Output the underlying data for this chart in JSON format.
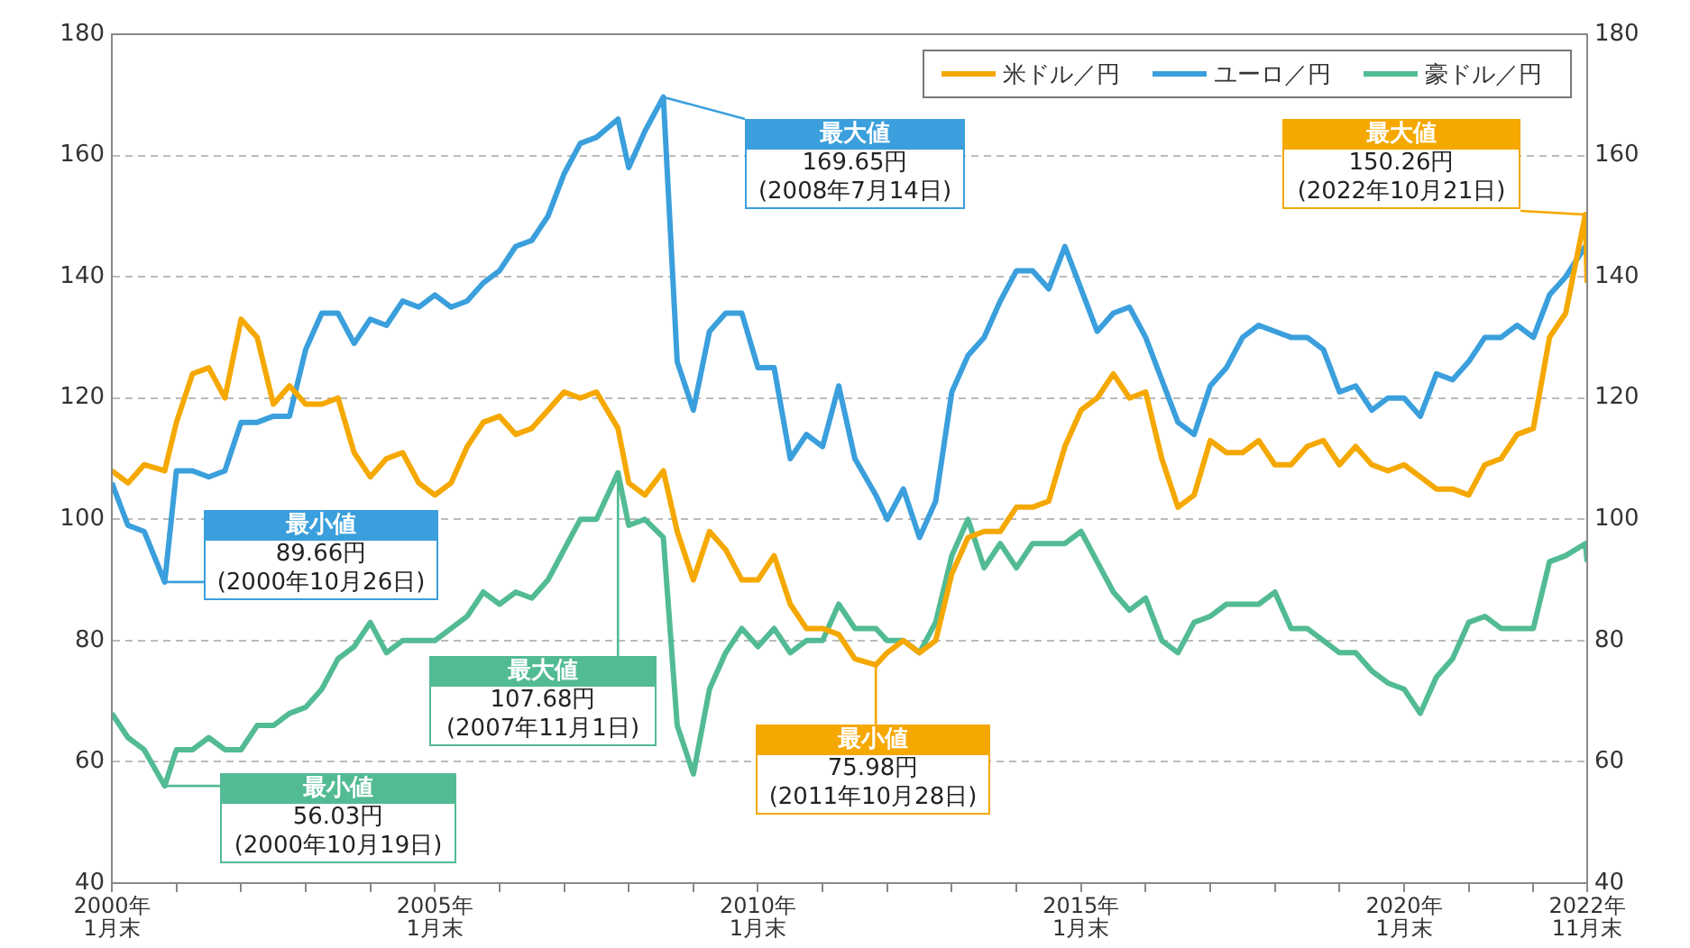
{
  "chart_data": {
    "type": "line",
    "x": [
      "2000-01",
      "2000-04",
      "2000-07",
      "2000-10-26",
      "2001-01",
      "2001-04",
      "2001-07",
      "2001-10",
      "2002-01",
      "2002-04",
      "2002-07",
      "2002-10",
      "2003-01",
      "2003-04",
      "2003-07",
      "2003-10",
      "2004-01",
      "2004-04",
      "2004-07",
      "2004-10",
      "2005-01",
      "2005-04",
      "2005-07",
      "2005-10",
      "2006-01",
      "2006-04",
      "2006-07",
      "2006-10",
      "2007-01",
      "2007-04",
      "2007-07",
      "2007-11-01",
      "2008-01",
      "2008-04",
      "2008-07-14",
      "2008-10",
      "2009-01",
      "2009-04",
      "2009-07",
      "2009-10",
      "2010-01",
      "2010-04",
      "2010-07",
      "2010-10",
      "2011-01",
      "2011-04",
      "2011-07",
      "2011-10-28",
      "2012-01",
      "2012-04",
      "2012-07",
      "2012-10",
      "2013-01",
      "2013-04",
      "2013-07",
      "2013-10",
      "2014-01",
      "2014-04",
      "2014-07",
      "2014-10",
      "2015-01",
      "2015-04",
      "2015-07",
      "2015-10",
      "2016-01",
      "2016-04",
      "2016-07",
      "2016-10",
      "2017-01",
      "2017-04",
      "2017-07",
      "2017-10",
      "2018-01",
      "2018-04",
      "2018-07",
      "2018-10",
      "2019-01",
      "2019-04",
      "2019-07",
      "2019-10",
      "2020-01",
      "2020-04",
      "2020-07",
      "2020-10",
      "2021-01",
      "2021-04",
      "2021-07",
      "2021-10",
      "2022-01",
      "2022-04",
      "2022-07",
      "2022-10-21",
      "2022-11"
    ],
    "series": [
      {
        "name": "米ドル／円",
        "color": "#f5a800",
        "values": [
          108,
          106,
          109,
          108,
          116,
          124,
          125,
          120,
          133,
          130,
          119,
          122,
          119,
          119,
          120,
          111,
          107,
          110,
          111,
          106,
          104,
          106,
          112,
          116,
          117,
          114,
          115,
          118,
          121,
          120,
          121,
          115,
          106,
          104,
          108,
          98,
          90,
          98,
          95,
          90,
          90,
          94,
          86,
          82,
          82,
          81,
          77,
          75.98,
          78,
          80,
          78,
          80,
          91,
          97,
          98,
          98,
          102,
          102,
          103,
          112,
          118,
          120,
          124,
          120,
          121,
          110,
          102,
          104,
          113,
          111,
          111,
          113,
          109,
          109,
          112,
          113,
          109,
          112,
          109,
          108,
          109,
          107,
          105,
          105,
          104,
          109,
          110,
          114,
          115,
          130,
          134,
          150.26,
          139
        ]
      },
      {
        "name": "ユーロ／円",
        "color": "#3a9fdc",
        "values": [
          106,
          99,
          98,
          89.66,
          108,
          108,
          107,
          108,
          116,
          116,
          117,
          117,
          128,
          134,
          134,
          129,
          133,
          132,
          136,
          135,
          137,
          135,
          136,
          139,
          141,
          145,
          146,
          150,
          157,
          162,
          163,
          166,
          158,
          164,
          169.65,
          126,
          118,
          131,
          134,
          134,
          125,
          125,
          110,
          114,
          112,
          122,
          110,
          104,
          100,
          105,
          97,
          103,
          121,
          127,
          130,
          136,
          141,
          141,
          138,
          145,
          138,
          131,
          134,
          135,
          130,
          123,
          116,
          114,
          122,
          125,
          130,
          132,
          131,
          130,
          130,
          128,
          121,
          122,
          118,
          120,
          120,
          117,
          124,
          123,
          126,
          130,
          130,
          132,
          130,
          137,
          140,
          145,
          143
        ]
      },
      {
        "name": "豪ドル／円",
        "color": "#52bb94",
        "values": [
          68,
          64,
          62,
          56.03,
          62,
          62,
          64,
          62,
          62,
          66,
          66,
          68,
          69,
          72,
          77,
          79,
          83,
          78,
          80,
          80,
          80,
          82,
          84,
          88,
          86,
          88,
          87,
          90,
          95,
          100,
          100,
          107.68,
          99,
          100,
          97,
          66,
          58,
          72,
          78,
          82,
          79,
          82,
          78,
          80,
          80,
          86,
          82,
          82,
          80,
          80,
          78,
          83,
          94,
          100,
          92,
          96,
          92,
          96,
          96,
          96,
          98,
          93,
          88,
          85,
          87,
          80,
          78,
          83,
          84,
          86,
          86,
          86,
          88,
          82,
          82,
          80,
          78,
          78,
          75,
          73,
          72,
          68,
          74,
          77,
          83,
          84,
          82,
          82,
          82,
          93,
          94,
          96,
          93
        ]
      }
    ],
    "xlim": [
      "2000-01",
      "2022-11"
    ],
    "xticks": [
      {
        "value": "2000-01",
        "label": "2000年\n1月末"
      },
      {
        "value": "2001-01",
        "label": null
      },
      {
        "value": "2002-01",
        "label": null
      },
      {
        "value": "2003-01",
        "label": null
      },
      {
        "value": "2004-01",
        "label": null
      },
      {
        "value": "2005-01",
        "label": "2005年\n1月末"
      },
      {
        "value": "2006-01",
        "label": null
      },
      {
        "value": "2007-01",
        "label": null
      },
      {
        "value": "2008-01",
        "label": null
      },
      {
        "value": "2009-01",
        "label": null
      },
      {
        "value": "2010-01",
        "label": "2010年\n1月末"
      },
      {
        "value": "2011-01",
        "label": null
      },
      {
        "value": "2012-01",
        "label": null
      },
      {
        "value": "2013-01",
        "label": null
      },
      {
        "value": "2014-01",
        "label": null
      },
      {
        "value": "2015-01",
        "label": "2015年\n1月末"
      },
      {
        "value": "2016-01",
        "label": null
      },
      {
        "value": "2017-01",
        "label": null
      },
      {
        "value": "2018-01",
        "label": null
      },
      {
        "value": "2019-01",
        "label": null
      },
      {
        "value": "2020-01",
        "label": "2020年\n1月末"
      },
      {
        "value": "2021-01",
        "label": null
      },
      {
        "value": "2022-01",
        "label": null
      },
      {
        "value": "2022-11",
        "label": "2022年\n11月末"
      }
    ],
    "ylim": [
      40,
      180
    ],
    "yticks": [
      40,
      60,
      80,
      100,
      120,
      140,
      160,
      180
    ],
    "y2lim": [
      40,
      180
    ],
    "y2ticks": [
      40,
      60,
      80,
      100,
      120,
      140,
      160,
      180
    ],
    "grid": "y",
    "legend": "top right",
    "marker": "none",
    "line_style": "solid",
    "annotations": [
      {
        "text": "最大値\n169.65円\n(2008年7月14日)",
        "x": "2008-07-14",
        "y": 169.65
      },
      {
        "text": "最大値\n150.26円\n(2022年10月21日)",
        "x": "2022-10-21",
        "y": 150.26
      },
      {
        "text": "最小値\n89.66円\n(2000年10月26日)",
        "x": "2000-10-26",
        "y": 89.66
      },
      {
        "text": "最大値\n107.68円\n(2007年11月1日)",
        "x": "2007-11-01",
        "y": 107.68
      },
      {
        "text": "最小値\n56.03円\n(2000年10月19日)",
        "x": "2000-10-19",
        "y": 56.03
      },
      {
        "text": "最小値\n75.98円\n(2011年10月28日)",
        "x": "2011-10-28",
        "y": 75.98
      }
    ]
  }
}
